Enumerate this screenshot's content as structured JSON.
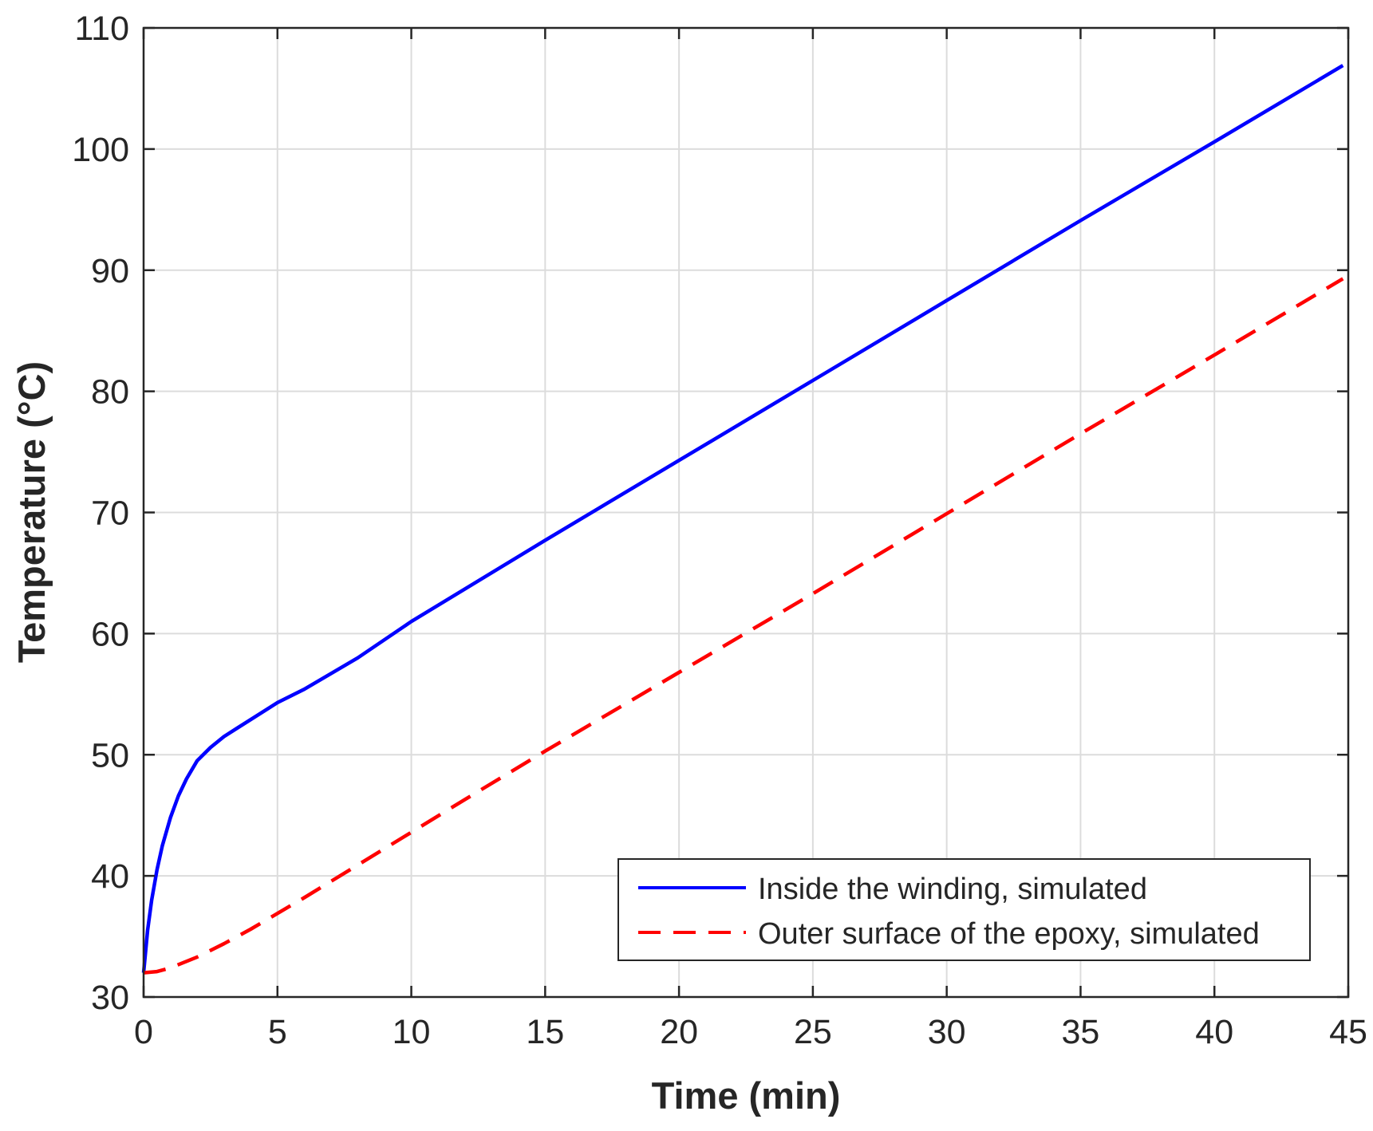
{
  "chart_data": {
    "type": "line",
    "xlabel": "Time (min)",
    "ylabel": "Temperature (°C)",
    "xlim": [
      0,
      45
    ],
    "ylim": [
      30,
      110
    ],
    "xticks": [
      0,
      5,
      10,
      15,
      20,
      25,
      30,
      35,
      40,
      45
    ],
    "yticks": [
      30,
      40,
      50,
      60,
      70,
      80,
      90,
      100,
      110
    ],
    "grid": true,
    "legend_position": "bottom-right",
    "series": [
      {
        "name": "Inside the winding, simulated",
        "color": "#0000ff",
        "style": "solid",
        "x": [
          0,
          0.15,
          0.3,
          0.5,
          0.7,
          1.0,
          1.3,
          1.6,
          2.0,
          2.5,
          3.0,
          3.5,
          4.0,
          5.0,
          6.0,
          8.0,
          10.0,
          15.0,
          20.0,
          25.0,
          30.0,
          35.0,
          40.0,
          44.8
        ],
        "y": [
          32,
          35.5,
          38.0,
          40.5,
          42.5,
          44.8,
          46.6,
          48.0,
          49.5,
          50.6,
          51.5,
          52.2,
          52.9,
          54.3,
          55.4,
          58.0,
          61.0,
          67.7,
          74.3,
          80.9,
          87.5,
          94.1,
          100.6,
          106.9
        ]
      },
      {
        "name": "Outer surface of the epoxy, simulated",
        "color": "#ff0000",
        "style": "dashed",
        "x": [
          0,
          0.5,
          1.0,
          2.0,
          3.0,
          4.0,
          5.0,
          6.0,
          8.0,
          10.0,
          12.0,
          15.0,
          20.0,
          25.0,
          30.0,
          35.0,
          40.0,
          44.8
        ],
        "y": [
          32,
          32.1,
          32.4,
          33.3,
          34.4,
          35.6,
          36.9,
          38.2,
          40.9,
          43.6,
          46.3,
          50.3,
          56.8,
          63.3,
          69.9,
          76.5,
          83.0,
          89.3
        ]
      }
    ]
  }
}
